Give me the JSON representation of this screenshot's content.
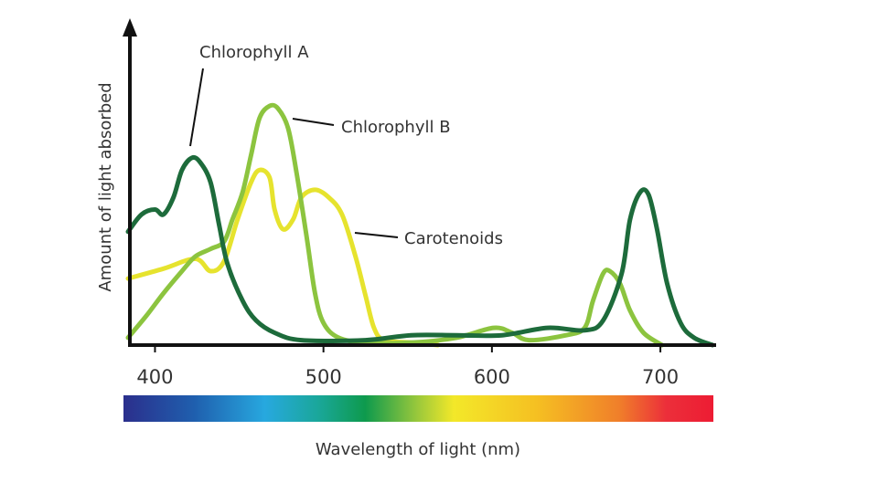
{
  "chart_data": {
    "type": "line",
    "y_label": "Amount of light absorbed",
    "x_label": "Wavelength of light (nm)",
    "xlim": [
      384,
      732
    ],
    "xticks": [
      400,
      500,
      600,
      700
    ],
    "ylim": [
      0,
      100
    ],
    "series": [
      {
        "name": "Chlorophyll A",
        "color": "#1d6b3b",
        "x": [
          384,
          392,
          400,
          405,
          411,
          416,
          422,
          427,
          433,
          438,
          443,
          452,
          460,
          471,
          487,
          525,
          552,
          579,
          606,
          633,
          655,
          666,
          677,
          682,
          688,
          693,
          698,
          704,
          712,
          720,
          731
        ],
        "values": [
          46,
          53,
          55,
          53,
          60,
          71,
          76,
          74,
          66,
          49,
          33,
          18,
          10,
          5,
          2,
          2,
          4,
          4,
          4,
          7,
          6,
          10,
          29,
          51,
          62,
          61,
          47,
          25,
          9,
          3,
          0
        ]
      },
      {
        "name": "Chlorophyll B",
        "color": "#8cc43f",
        "x": [
          384,
          395,
          405,
          416,
          424,
          433,
          441,
          446,
          452,
          457,
          462,
          468,
          473,
          479,
          484,
          490,
          495,
          500,
          509,
          525,
          552,
          579,
          601,
          612,
          622,
          644,
          655,
          660,
          666,
          670,
          676,
          682,
          690,
          701
        ],
        "values": [
          3,
          12,
          21,
          30,
          36,
          39,
          42,
          51,
          62,
          77,
          92,
          97,
          96,
          88,
          70,
          44,
          21,
          9,
          3,
          1,
          1,
          3,
          7,
          5,
          2,
          4,
          7,
          18,
          29,
          30,
          25,
          14,
          5,
          0
        ]
      },
      {
        "name": "Carotenoids",
        "color": "#e6e32e",
        "x": [
          384,
          405,
          424,
          433,
          441,
          449,
          457,
          462,
          468,
          471,
          476,
          482,
          487,
          495,
          503,
          511,
          519,
          525,
          530,
          536,
          552,
          568
        ],
        "values": [
          27,
          31,
          35,
          30,
          34,
          51,
          66,
          71,
          68,
          55,
          47,
          51,
          60,
          63,
          60,
          53,
          36,
          20,
          7,
          2,
          1,
          0
        ]
      }
    ]
  }
}
